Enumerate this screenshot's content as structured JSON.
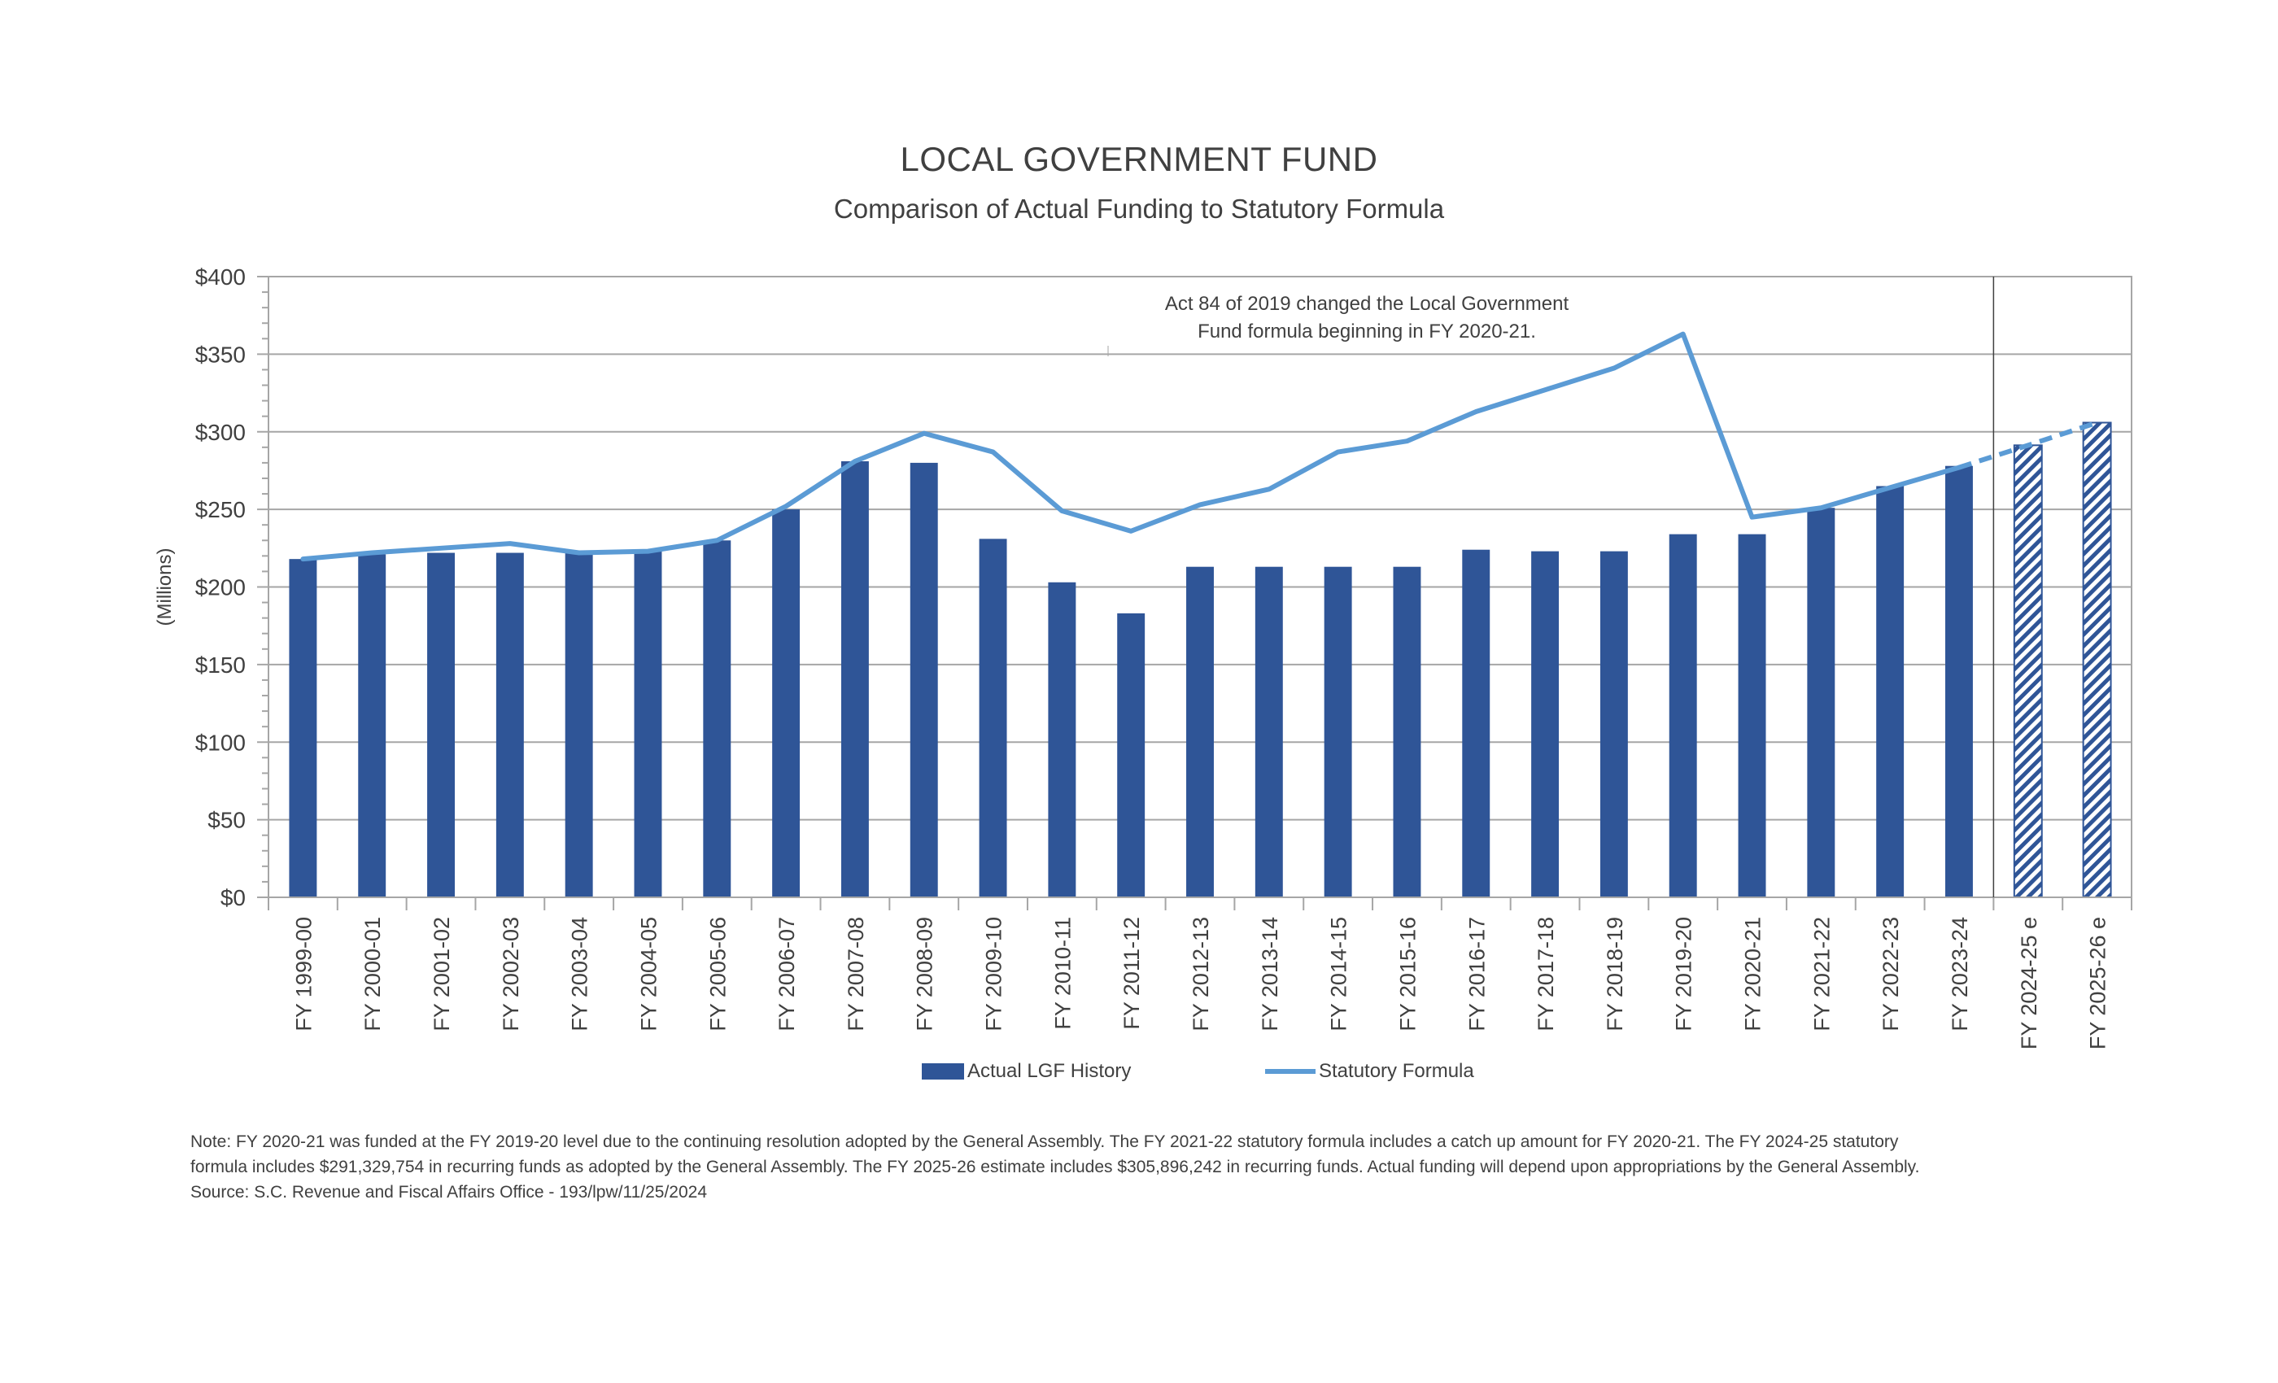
{
  "chart_data": {
    "type": "bar",
    "title": "LOCAL GOVERNMENT FUND",
    "subtitle": "Comparison of Actual Funding to Statutory Formula",
    "ylabel": "(Millions)",
    "xlabel": "",
    "ylim": [
      0,
      400
    ],
    "ytick_values": [
      0,
      50,
      100,
      150,
      200,
      250,
      300,
      350,
      400
    ],
    "ytick_labels": [
      "$0",
      "$50",
      "$100",
      "$150",
      "$200",
      "$250",
      "$300",
      "$350",
      "$400"
    ],
    "grid": true,
    "categories": [
      "FY 1999-00",
      "FY 2000-01",
      "FY 2001-02",
      "FY 2002-03",
      "FY 2003-04",
      "FY 2004-05",
      "FY 2005-06",
      "FY 2006-07",
      "FY 2007-08",
      "FY 2008-09",
      "FY 2009-10",
      "FY 2010-11",
      "FY 2011-12",
      "FY 2012-13",
      "FY 2013-14",
      "FY 2014-15",
      "FY 2015-16",
      "FY 2016-17",
      "FY 2017-18",
      "FY 2018-19",
      "FY 2019-20",
      "FY 2020-21",
      "FY 2021-22",
      "FY 2022-23",
      "FY 2023-24",
      "FY 2024-25 e",
      "FY 2025-26 e"
    ],
    "series": [
      {
        "name": "Actual LGF History",
        "kind": "bar",
        "color": "#2F5597",
        "values": [
          218,
          221,
          222,
          222,
          222,
          223,
          230,
          250,
          281,
          280,
          231,
          203,
          183,
          213,
          213,
          213,
          213,
          224,
          223,
          223,
          234,
          234,
          251,
          265,
          278,
          291.3,
          305.9
        ],
        "estimated_from_index": 25,
        "estimated_style": "hatched"
      },
      {
        "name": "Statutory Formula",
        "kind": "line",
        "color": "#5B9BD5",
        "values": [
          218,
          222,
          225,
          228,
          222,
          223,
          230,
          252,
          281,
          299,
          287,
          249,
          236,
          253,
          263,
          287,
          294,
          313,
          327,
          341,
          363,
          245,
          251,
          264,
          277,
          291.3,
          305.9
        ],
        "dashed_from_index": 24
      }
    ],
    "divider_after_category_index": 24,
    "legend_position": "bottom",
    "annotation": [
      "Act 84 of 2019 changed the Local Government",
      "Fund formula beginning in FY 2020-21."
    ]
  },
  "legend": {
    "bars_label": "Actual LGF History",
    "line_label": "Statutory Formula"
  },
  "notes": [
    "Note: FY 2020-21 was funded at the FY 2019-20 level due to the continuing resolution adopted by the General Assembly. The FY 2021-22 statutory formula includes a catch up amount for FY 2020-21. The FY 2024-25 statutory",
    "formula includes $291,329,754 in recurring funds as adopted by the General Assembly. The FY 2025-26 estimate includes $305,896,242 in recurring funds. Actual funding will depend upon appropriations by the General Assembly.",
    "Source: S.C. Revenue and Fiscal Affairs Office - 193/lpw/11/25/2024"
  ]
}
